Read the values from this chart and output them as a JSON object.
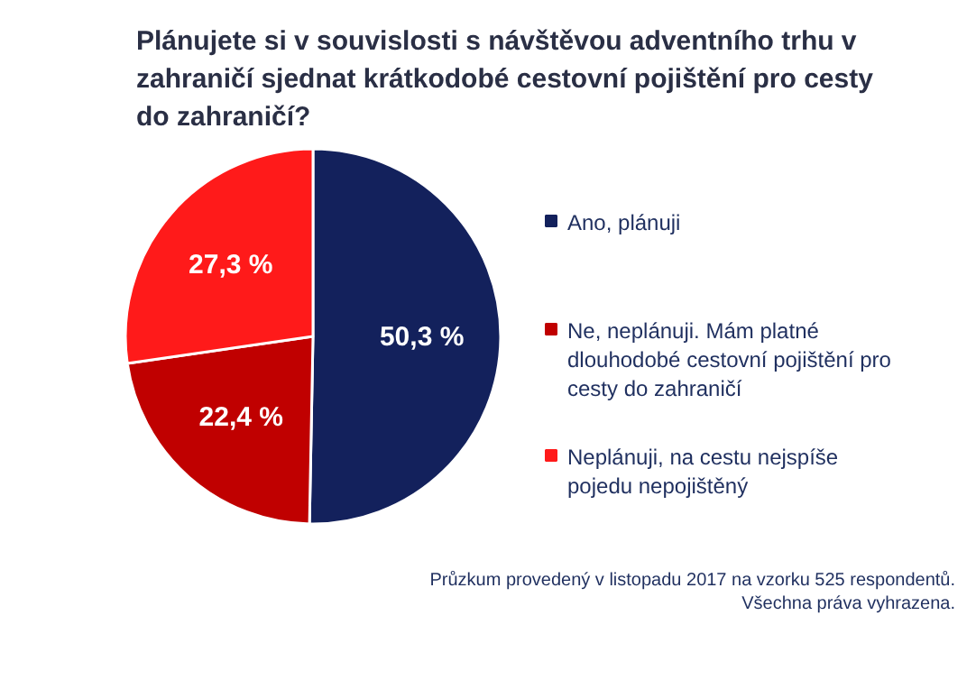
{
  "chart_data": {
    "type": "pie",
    "title": "Plánujete si v souvislosti s návštěvou adventního trhu v zahraničí sjednat krátkodobé cestovní pojištění pro cesty do zahraničí?",
    "categories": [
      "Ano, plánuji",
      "Ne, neplánuji. Mám platné dlouhodobé cestovní pojištění pro cesty do zahraničí",
      "Neplánuji, na cestu nejspíše pojedu nepojištěný"
    ],
    "values": [
      50.3,
      22.4,
      27.3
    ],
    "colors": [
      "#13215c",
      "#c00000",
      "#ff1a1a"
    ],
    "value_labels": [
      "50,3 %",
      "22,4 %",
      "27,3 %"
    ],
    "legend": "right",
    "annotations": [
      "Průzkum provedený v listopadu 2017 na vzorku 525 respondentů. Všechna práva vyhrazena."
    ]
  }
}
